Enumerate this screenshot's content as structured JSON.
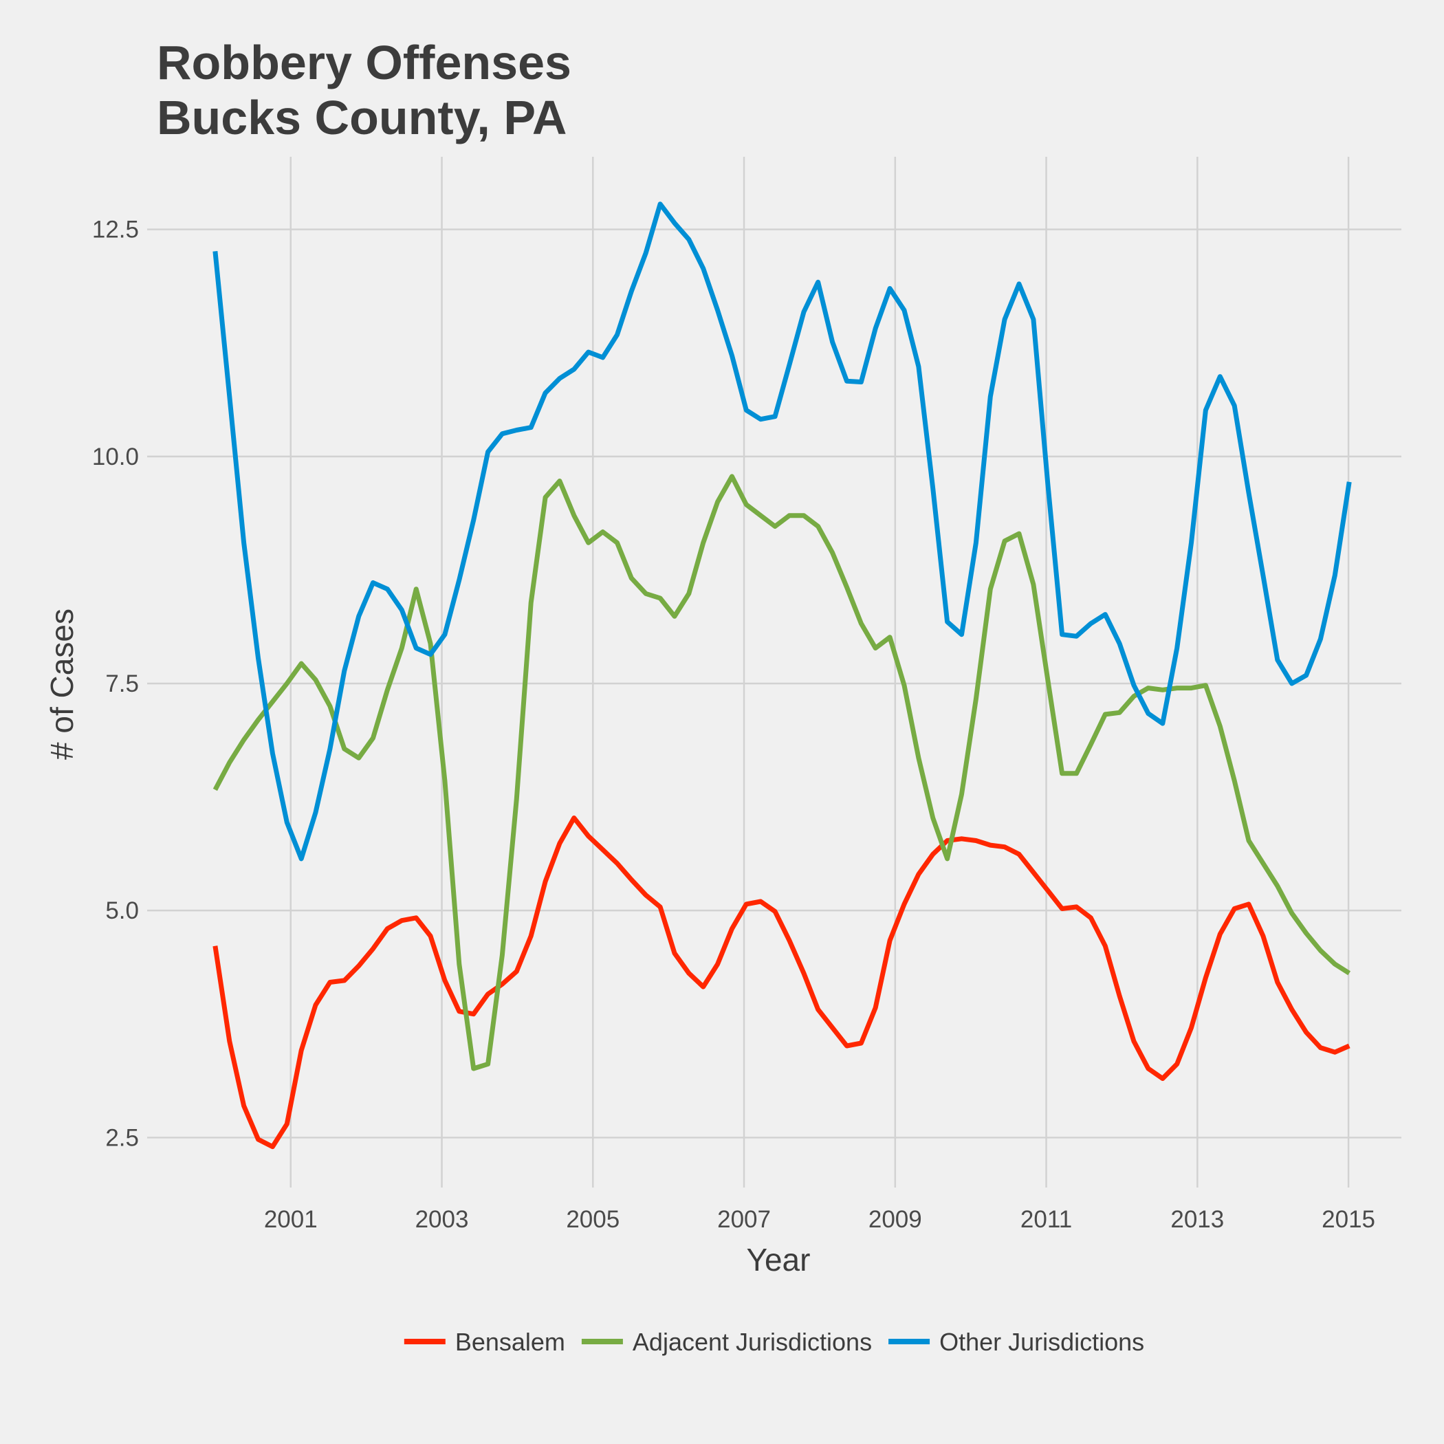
{
  "chart_data": {
    "type": "line",
    "title": "Robbery Offenses\nBucks County, PA",
    "x_label": "Year",
    "y_label": "# of Cases",
    "x": [
      2000,
      2000.19,
      2000.38,
      2000.57,
      2000.76,
      2000.95,
      2001.14,
      2001.33,
      2001.52,
      2001.71,
      2001.9,
      2002.09,
      2002.28,
      2002.47,
      2002.66,
      2002.85,
      2003.04,
      2003.23,
      2003.42,
      2003.61,
      2003.8,
      2003.99,
      2004.18,
      2004.37,
      2004.56,
      2004.75,
      2004.94,
      2005.13,
      2005.32,
      2005.51,
      2005.7,
      2005.89,
      2006.08,
      2006.27,
      2006.46,
      2006.65,
      2006.84,
      2007.03,
      2007.22,
      2007.41,
      2007.6,
      2007.79,
      2007.98,
      2008.17,
      2008.36,
      2008.55,
      2008.74,
      2008.93,
      2009.12,
      2009.31,
      2009.5,
      2009.69,
      2009.88,
      2010.07,
      2010.26,
      2010.45,
      2010.64,
      2010.83,
      2011.02,
      2011.21,
      2011.4,
      2011.59,
      2011.78,
      2011.97,
      2012.16,
      2012.35,
      2012.54,
      2012.73,
      2012.92,
      2013.11,
      2013.3,
      2013.49,
      2013.68,
      2013.87,
      2014.06,
      2014.25,
      2014.44,
      2014.63,
      2014.82,
      2015.01
    ],
    "series": [
      {
        "name": "Bensalem",
        "color": "#ff2700",
        "values": [
          4.61,
          3.56,
          2.85,
          2.48,
          2.4,
          2.65,
          3.46,
          3.96,
          4.21,
          4.23,
          4.39,
          4.58,
          4.8,
          4.89,
          4.92,
          4.72,
          4.23,
          3.89,
          3.86,
          4.08,
          4.19,
          4.33,
          4.72,
          5.32,
          5.74,
          6.02,
          5.82,
          5.67,
          5.52,
          5.34,
          5.17,
          5.04,
          4.53,
          4.31,
          4.16,
          4.41,
          4.8,
          5.07,
          5.1,
          4.99,
          4.67,
          4.31,
          3.91,
          3.71,
          3.51,
          3.54,
          3.93,
          4.67,
          5.07,
          5.4,
          5.62,
          5.77,
          5.79,
          5.77,
          5.72,
          5.7,
          5.62,
          5.42,
          5.22,
          5.02,
          5.04,
          4.92,
          4.61,
          4.06,
          3.56,
          3.26,
          3.15,
          3.31,
          3.71,
          4.26,
          4.74,
          5.02,
          5.07,
          4.72,
          4.21,
          3.91,
          3.66,
          3.49,
          3.44,
          3.51
        ]
      },
      {
        "name": "Adjacent Jurisdictions",
        "color": "#77ab43",
        "values": [
          6.33,
          6.63,
          6.88,
          7.1,
          7.3,
          7.5,
          7.72,
          7.54,
          7.25,
          6.78,
          6.68,
          6.9,
          7.43,
          7.89,
          8.54,
          7.94,
          6.43,
          4.41,
          3.26,
          3.31,
          4.51,
          6.23,
          8.39,
          9.55,
          9.73,
          9.35,
          9.05,
          9.17,
          9.05,
          8.66,
          8.49,
          8.44,
          8.24,
          8.49,
          9.05,
          9.5,
          9.78,
          9.47,
          9.35,
          9.23,
          9.35,
          9.35,
          9.23,
          8.94,
          8.56,
          8.16,
          7.89,
          8.01,
          7.48,
          6.68,
          6.02,
          5.57,
          6.28,
          7.33,
          8.54,
          9.07,
          9.15,
          8.59,
          7.54,
          6.51,
          6.51,
          6.83,
          7.16,
          7.18,
          7.36,
          7.45,
          7.43,
          7.45,
          7.45,
          7.48,
          7.03,
          6.43,
          5.77,
          5.52,
          5.27,
          4.97,
          4.75,
          4.56,
          4.41,
          4.31
        ]
      },
      {
        "name": "Other Jurisdictions",
        "color": "#008fd5",
        "values": [
          12.26,
          10.66,
          9.05,
          7.78,
          6.73,
          5.97,
          5.57,
          6.08,
          6.78,
          7.64,
          8.24,
          8.61,
          8.54,
          8.31,
          7.89,
          7.82,
          8.04,
          8.64,
          9.3,
          10.05,
          10.25,
          10.29,
          10.32,
          10.7,
          10.86,
          10.96,
          11.15,
          11.09,
          11.34,
          11.82,
          12.24,
          12.78,
          12.57,
          12.39,
          12.07,
          11.61,
          11.11,
          10.51,
          10.41,
          10.44,
          11.01,
          11.59,
          11.92,
          11.26,
          10.83,
          10.82,
          11.41,
          11.85,
          11.61,
          10.99,
          9.65,
          8.18,
          8.04,
          9.05,
          10.66,
          11.51,
          11.9,
          11.51,
          9.7,
          8.04,
          8.02,
          8.16,
          8.26,
          7.94,
          7.48,
          7.17,
          7.06,
          7.89,
          9.05,
          10.51,
          10.88,
          10.56,
          9.6,
          8.69,
          7.76,
          7.5,
          7.59,
          7.99,
          8.69,
          9.72
        ]
      }
    ],
    "xlim": [
      1999.1,
      2015.7
    ],
    "xticks": [
      2001,
      2003,
      2005,
      2007,
      2009,
      2011,
      2013,
      2015
    ],
    "ylim": [
      1.95,
      13.3
    ],
    "yticks": [
      2.5,
      {
        "value": 5,
        "label": "5.0"
      },
      7.5,
      {
        "value": 10,
        "label": "10.0"
      },
      12.5
    ],
    "grid": true,
    "legend": "bottom"
  }
}
